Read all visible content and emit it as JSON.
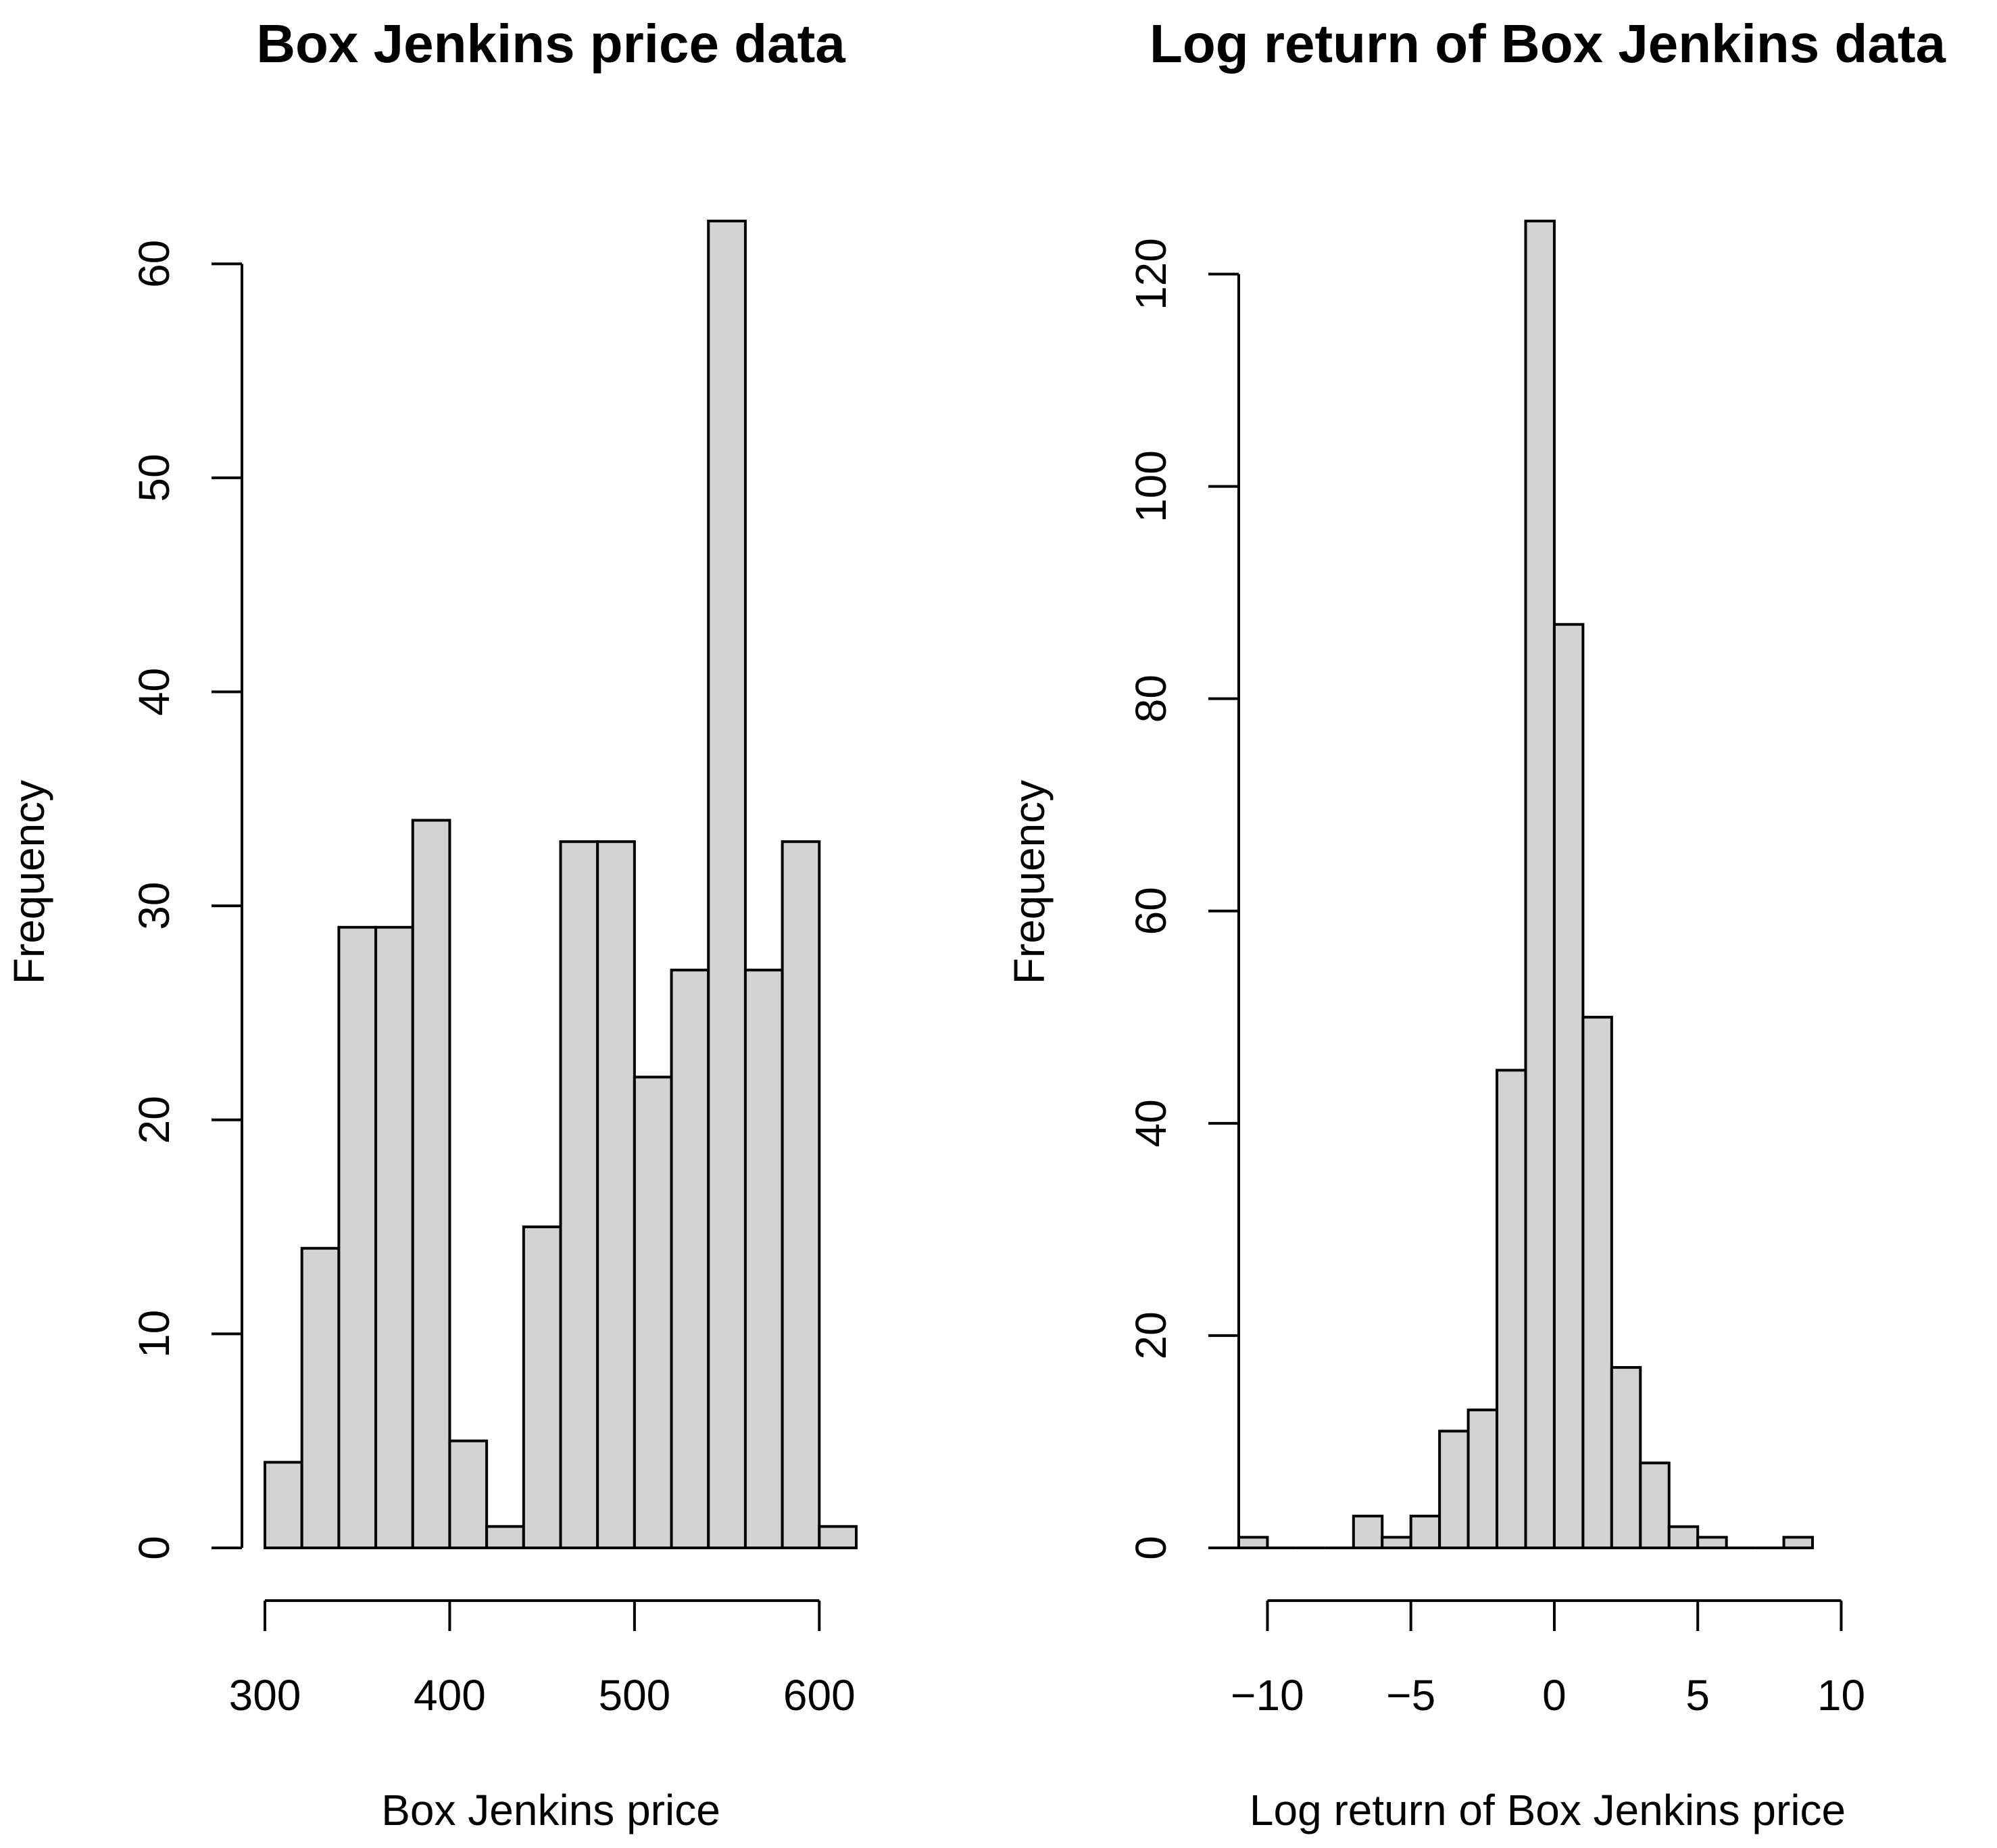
{
  "chart_data": [
    {
      "type": "bar",
      "title": "Box Jenkins price data",
      "xlabel": "Box Jenkins price",
      "ylabel": "Frequency",
      "bar_color": "#d3d3d3",
      "xlim": [
        300,
        620
      ],
      "ylim": [
        0,
        62
      ],
      "bin_edges": [
        300,
        320,
        340,
        360,
        380,
        400,
        420,
        440,
        460,
        480,
        500,
        520,
        540,
        560,
        580,
        600,
        620
      ],
      "values": [
        4,
        14,
        29,
        29,
        34,
        5,
        1,
        15,
        33,
        33,
        22,
        27,
        62,
        27,
        33,
        1
      ],
      "x_ticks": [
        300,
        400,
        500,
        600
      ],
      "x_tick_labels": [
        "300",
        "400",
        "500",
        "600"
      ],
      "y_ticks": [
        0,
        10,
        20,
        30,
        40,
        50,
        60
      ],
      "y_tick_labels": [
        "0",
        "10",
        "20",
        "30",
        "40",
        "50",
        "60"
      ]
    },
    {
      "type": "bar",
      "title": "Log return of Box Jenkins data",
      "xlabel": "Log return of Box Jenkins price",
      "ylabel": "Frequency",
      "bar_color": "#d3d3d3",
      "xlim": [
        -11,
        9
      ],
      "ylim": [
        0,
        125
      ],
      "bin_edges": [
        -11,
        -10,
        -9,
        -8,
        -7,
        -6,
        -5,
        -4,
        -3,
        -2,
        -1,
        0,
        1,
        2,
        3,
        4,
        5,
        6,
        7,
        8,
        9
      ],
      "values": [
        1,
        0,
        0,
        0,
        3,
        1,
        3,
        11,
        13,
        45,
        125,
        87,
        50,
        17,
        8,
        2,
        1,
        0,
        0,
        1
      ],
      "x_ticks": [
        -10,
        -5,
        0,
        5,
        10
      ],
      "x_tick_labels": [
        "−10",
        "−5",
        "0",
        "5",
        "10"
      ],
      "y_ticks": [
        0,
        20,
        40,
        60,
        80,
        100,
        120
      ],
      "y_tick_labels": [
        "0",
        "20",
        "40",
        "60",
        "80",
        "100",
        "120"
      ]
    }
  ]
}
